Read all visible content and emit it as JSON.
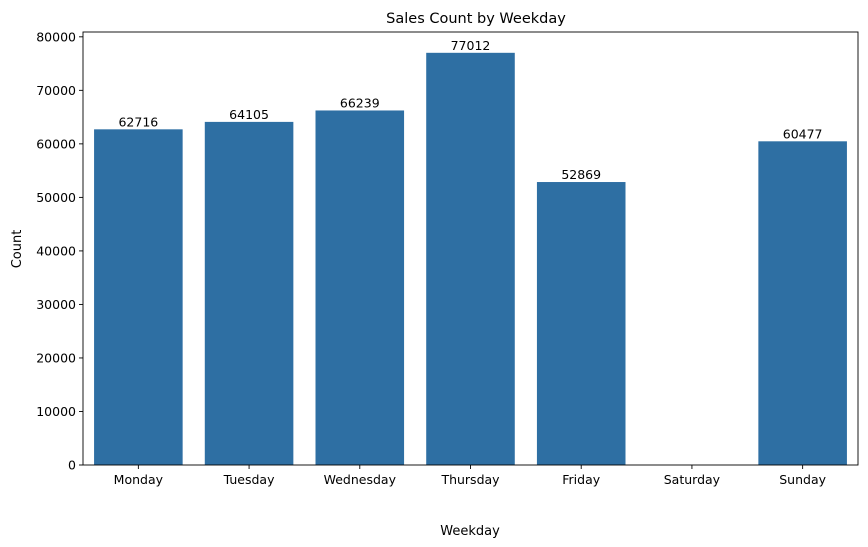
{
  "chart_data": {
    "type": "bar",
    "title": "Sales Count by Weekday",
    "xlabel": "Weekday",
    "ylabel": "Count",
    "categories": [
      "Monday",
      "Tuesday",
      "Wednesday",
      "Thursday",
      "Friday",
      "Saturday",
      "Sunday"
    ],
    "values": [
      62716,
      64105,
      66239,
      77012,
      52869,
      0,
      60477
    ],
    "data_labels": [
      "62716",
      "64105",
      "66239",
      "77012",
      "52869",
      "",
      "60477"
    ],
    "ylim": [
      0,
      80900
    ],
    "yticks": [
      0,
      10000,
      20000,
      30000,
      40000,
      50000,
      60000,
      70000,
      80000
    ],
    "ytick_labels": [
      "0",
      "10000",
      "20000",
      "30000",
      "40000",
      "50000",
      "60000",
      "70000",
      "80000"
    ],
    "grid": false,
    "bar_color": "#2e6fa3"
  }
}
